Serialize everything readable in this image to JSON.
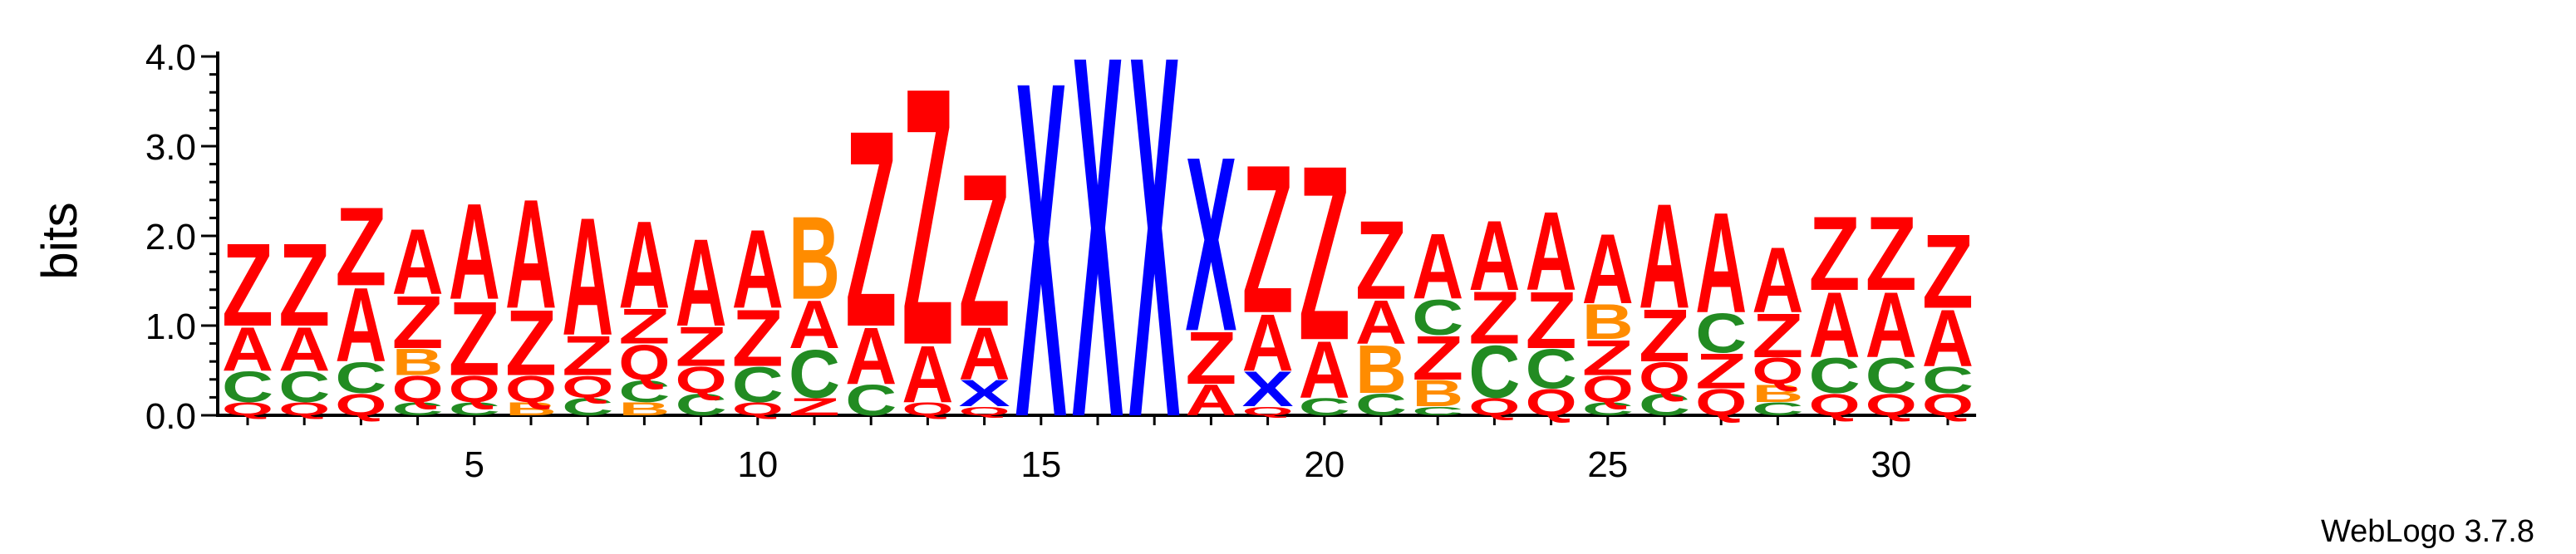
{
  "chart_data": {
    "type": "sequence-logo",
    "ylabel": "bits",
    "ylim": [
      0,
      4.0
    ],
    "yticks": [
      "0.0",
      "1.0",
      "2.0",
      "3.0",
      "4.0"
    ],
    "xticks": [
      "5",
      "10",
      "15",
      "20",
      "25",
      "30"
    ],
    "credit": "WebLogo 3.7.8",
    "colors": {
      "Z": "#ff0000",
      "A": "#ff0000",
      "Q": "#ff0000",
      "X": "#0000ff",
      "B": "#ff8c00",
      "C": "#228b22"
    },
    "positions": [
      {
        "pos": 1,
        "stack": [
          [
            "Q",
            0.15
          ],
          [
            "C",
            0.35
          ],
          [
            "A",
            0.5
          ],
          [
            "Z",
            0.95
          ]
        ]
      },
      {
        "pos": 2,
        "stack": [
          [
            "Q",
            0.15
          ],
          [
            "C",
            0.35
          ],
          [
            "A",
            0.5
          ],
          [
            "Z",
            0.95
          ]
        ]
      },
      {
        "pos": 3,
        "stack": [
          [
            "Q",
            0.25
          ],
          [
            "C",
            0.35
          ],
          [
            "A",
            0.85
          ],
          [
            "Z",
            0.9
          ]
        ]
      },
      {
        "pos": 4,
        "stack": [
          [
            "C",
            0.15
          ],
          [
            "Q",
            0.3
          ],
          [
            "B",
            0.3
          ],
          [
            "Z",
            0.6
          ],
          [
            "A",
            0.75
          ]
        ]
      },
      {
        "pos": 5,
        "stack": [
          [
            "C",
            0.15
          ],
          [
            "Q",
            0.3
          ],
          [
            "Z",
            0.85
          ],
          [
            "A",
            1.1
          ]
        ]
      },
      {
        "pos": 6,
        "stack": [
          [
            "B",
            0.15
          ],
          [
            "Q",
            0.3
          ],
          [
            "Z",
            0.75
          ],
          [
            "A",
            1.25
          ]
        ]
      },
      {
        "pos": 7,
        "stack": [
          [
            "C",
            0.2
          ],
          [
            "Q",
            0.25
          ],
          [
            "Z",
            0.45
          ],
          [
            "A",
            1.35
          ]
        ]
      },
      {
        "pos": 8,
        "stack": [
          [
            "B",
            0.15
          ],
          [
            "C",
            0.25
          ],
          [
            "Q",
            0.4
          ],
          [
            "Z",
            0.4
          ],
          [
            "A",
            1.0
          ]
        ]
      },
      {
        "pos": 9,
        "stack": [
          [
            "C",
            0.25
          ],
          [
            "Q",
            0.3
          ],
          [
            "Z",
            0.45
          ],
          [
            "A",
            1.0
          ]
        ]
      },
      {
        "pos": 10,
        "stack": [
          [
            "Q",
            0.15
          ],
          [
            "C",
            0.4
          ],
          [
            "Z",
            0.65
          ],
          [
            "A",
            0.9
          ]
        ]
      },
      {
        "pos": 11,
        "stack": [
          [
            "Z",
            0.2
          ],
          [
            "C",
            0.55
          ],
          [
            "A",
            0.55
          ],
          [
            "B",
            0.95
          ]
        ]
      },
      {
        "pos": 12,
        "stack": [
          [
            "C",
            0.35
          ],
          [
            "A",
            0.65
          ],
          [
            "Z",
            2.25
          ]
        ]
      },
      {
        "pos": 13,
        "stack": [
          [
            "Q",
            0.15
          ],
          [
            "A",
            0.65
          ],
          [
            "Z",
            2.95
          ]
        ]
      },
      {
        "pos": 14,
        "stack": [
          [
            "Q",
            0.1
          ],
          [
            "X",
            0.3
          ],
          [
            "A",
            0.6
          ],
          [
            "Z",
            1.75
          ]
        ]
      },
      {
        "pos": 15,
        "stack": [
          [
            "X",
            3.85
          ]
        ]
      },
      {
        "pos": 16,
        "stack": [
          [
            "X",
            4.15
          ]
        ]
      },
      {
        "pos": 17,
        "stack": [
          [
            "X",
            4.15
          ]
        ]
      },
      {
        "pos": 18,
        "stack": [
          [
            "A",
            0.35
          ],
          [
            "Z",
            0.6
          ],
          [
            "X",
            2.0
          ]
        ]
      },
      {
        "pos": 19,
        "stack": [
          [
            "Q",
            0.1
          ],
          [
            "X",
            0.4
          ],
          [
            "A",
            0.65
          ],
          [
            "Z",
            1.7
          ]
        ]
      },
      {
        "pos": 20,
        "stack": [
          [
            "C",
            0.2
          ],
          [
            "A",
            0.65
          ],
          [
            "Z",
            2.0
          ]
        ]
      },
      {
        "pos": 21,
        "stack": [
          [
            "C",
            0.25
          ],
          [
            "B",
            0.55
          ],
          [
            "A",
            0.5
          ],
          [
            "Z",
            0.9
          ]
        ]
      },
      {
        "pos": 22,
        "stack": [
          [
            "C",
            0.1
          ],
          [
            "B",
            0.3
          ],
          [
            "Z",
            0.5
          ],
          [
            "C",
            0.4
          ],
          [
            "A",
            0.75
          ]
        ]
      },
      {
        "pos": 23,
        "stack": [
          [
            "Q",
            0.2
          ],
          [
            "C",
            0.6
          ],
          [
            "Z",
            0.6
          ],
          [
            "A",
            0.8
          ]
        ]
      },
      {
        "pos": 24,
        "stack": [
          [
            "Q",
            0.3
          ],
          [
            "C",
            0.45
          ],
          [
            "Z",
            0.65
          ],
          [
            "A",
            0.9
          ]
        ]
      },
      {
        "pos": 25,
        "stack": [
          [
            "C",
            0.15
          ],
          [
            "Q",
            0.3
          ],
          [
            "Z",
            0.4
          ],
          [
            "B",
            0.4
          ],
          [
            "A",
            0.8
          ]
        ]
      },
      {
        "pos": 26,
        "stack": [
          [
            "C",
            0.25
          ],
          [
            "Q",
            0.35
          ],
          [
            "Z",
            0.6
          ],
          [
            "A",
            1.2
          ]
        ]
      },
      {
        "pos": 27,
        "stack": [
          [
            "Q",
            0.3
          ],
          [
            "Z",
            0.4
          ],
          [
            "C",
            0.45
          ],
          [
            "A",
            1.15
          ]
        ]
      },
      {
        "pos": 28,
        "stack": [
          [
            "C",
            0.15
          ],
          [
            "B",
            0.2
          ],
          [
            "Q",
            0.3
          ],
          [
            "Z",
            0.5
          ],
          [
            "A",
            0.75
          ]
        ]
      },
      {
        "pos": 29,
        "stack": [
          [
            "Q",
            0.25
          ],
          [
            "C",
            0.4
          ],
          [
            "A",
            0.75
          ],
          [
            "Z",
            0.85
          ]
        ]
      },
      {
        "pos": 30,
        "stack": [
          [
            "Q",
            0.25
          ],
          [
            "C",
            0.4
          ],
          [
            "A",
            0.75
          ],
          [
            "Z",
            0.85
          ]
        ]
      },
      {
        "pos": 31,
        "stack": [
          [
            "Q",
            0.25
          ],
          [
            "C",
            0.3
          ],
          [
            "A",
            0.65
          ],
          [
            "Z",
            0.85
          ]
        ]
      }
    ]
  }
}
